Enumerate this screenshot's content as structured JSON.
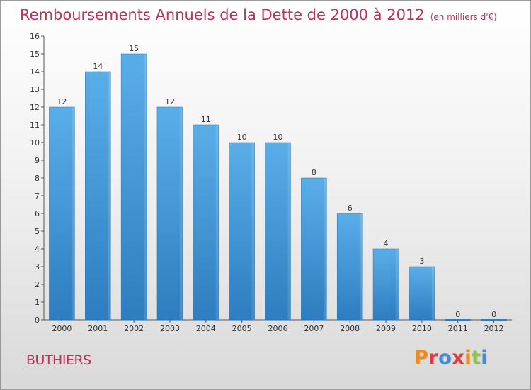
{
  "title": "Remboursements Annuels de la Dette de 2000 à 2012",
  "subtitle": "(en milliers d'€)",
  "commune": "BUTHIERS",
  "logo_text": "Proxiti",
  "logo_colors": [
    "#f08a1c",
    "#e03a3e",
    "#3a8fd8",
    "#e03a3e",
    "#f08a1c",
    "#8bc34a",
    "#3a8fd8"
  ],
  "colors": {
    "accent": "#c0305a",
    "bar_light": "#5aaee8",
    "bar_dark": "#2d7dc0",
    "axis": "#555555"
  },
  "chart_data": {
    "type": "bar",
    "title": "Remboursements Annuels de la Dette de 2000 à 2012",
    "subtitle": "(en milliers d'€)",
    "xlabel": "",
    "ylabel": "",
    "categories": [
      "2000",
      "2001",
      "2002",
      "2003",
      "2004",
      "2005",
      "2006",
      "2007",
      "2008",
      "2009",
      "2010",
      "2011",
      "2012"
    ],
    "values": [
      12,
      14,
      15,
      12,
      11,
      10,
      10,
      8,
      6,
      4,
      3,
      0,
      0
    ],
    "ylim": [
      0,
      16
    ],
    "yticks": [
      0,
      1,
      2,
      3,
      4,
      5,
      6,
      7,
      8,
      9,
      10,
      11,
      12,
      13,
      14,
      15,
      16
    ],
    "grid": false,
    "legend": "none"
  }
}
